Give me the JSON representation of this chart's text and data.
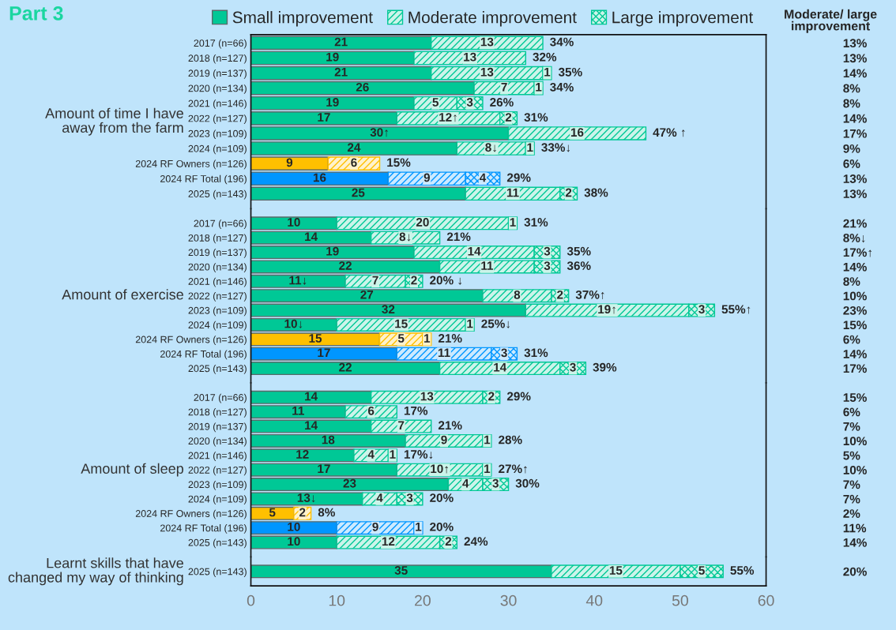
{
  "chart_data": [
    {
      "type": "bar",
      "orientation": "horizontal",
      "stacked": true,
      "title": "Part 3",
      "ylabel": "Amount of time I have\naway from the farm",
      "legend": "top",
      "tick_labels": "y",
      "xlim": [
        0,
        60
      ],
      "xticks": [
        0,
        10,
        20,
        30,
        40,
        50,
        60
      ],
      "categories": [
        "2017 (n=66)",
        "2018 (n=127)",
        "2019 (n=137)",
        "2020 (n=134)",
        "2021 (n=146)",
        "2022 (n=127)",
        "2023 (n=109)",
        "2024 (n=109)",
        "2024 RF Owners (n=126)",
        "2024 RF Total (196)",
        "2025 (n=143)"
      ],
      "y2_categories": [
        "13%",
        "13%",
        "14%",
        "8%",
        "8%",
        "14%",
        "17%",
        "9%",
        "6%",
        "13%",
        "13%"
      ],
      "series": [
        {
          "name": "Small improvement",
          "colors": [
            "#00c896",
            "#00c896",
            "#00c896",
            "#00c896",
            "#00c896",
            "#00c896",
            "#00c896",
            "#00c896",
            "#ffc000",
            "#0096ff",
            "#00c896"
          ],
          "values": [
            21,
            19,
            21,
            26,
            19,
            17,
            30,
            24,
            9,
            16,
            25
          ],
          "value_labels": [
            "21",
            "19",
            "21",
            "26",
            "19",
            "17",
            "30↑",
            "24",
            "9",
            "16",
            "25"
          ]
        },
        {
          "name": "Moderate improvement",
          "colors": [
            "#00c896",
            "#00c896",
            "#00c896",
            "#00c896",
            "#00c896",
            "#00c896",
            "#00c896",
            "#00c896",
            "#ffc000",
            "#0096ff",
            "#00c896"
          ],
          "values": [
            13,
            13,
            13,
            7,
            5,
            12,
            16,
            8,
            6,
            9,
            11
          ],
          "value_labels": [
            "13",
            "13",
            "13",
            "7",
            "5",
            "12↑",
            "16",
            "8↓",
            "6",
            "9",
            "11"
          ]
        },
        {
          "name": "Large improvement",
          "colors": [
            "#00c896",
            "#00c896",
            "#00c896",
            "#00c896",
            "#00c896",
            "#00c896",
            "#00c896",
            "#00c896",
            "#ffc000",
            "#0096ff",
            "#00c896"
          ],
          "values": [
            null,
            null,
            1,
            1,
            3,
            2,
            null,
            1,
            null,
            4,
            2
          ],
          "value_labels": [
            null,
            null,
            "1",
            "1",
            "3",
            "2",
            null,
            "1",
            null,
            "4",
            "2"
          ]
        }
      ],
      "totals": [
        "34%",
        "32%",
        "35%",
        "34%",
        "26%",
        "31%",
        "47% ↑",
        "33%↓",
        "15%",
        "29%",
        "38%"
      ],
      "annotations": [
        "Moderate/ large\nimprovement"
      ]
    },
    {
      "type": "bar",
      "orientation": "horizontal",
      "stacked": true,
      "ylabel": "Amount of exercise",
      "tick_labels": "y",
      "xlim": [
        0,
        60
      ],
      "xticks": [
        0,
        10,
        20,
        30,
        40,
        50,
        60
      ],
      "categories": [
        "2017 (n=66)",
        "2018 (n=127)",
        "2019 (n=137)",
        "2020 (n=134)",
        "2021 (n=146)",
        "2022 (n=127)",
        "2023 (n=109)",
        "2024 (n=109)",
        "2024 RF Owners (n=126)",
        "2024 RF Total (196)",
        "2025 (n=143)"
      ],
      "y2_categories": [
        "21%",
        "8%↓",
        "17%↑",
        "14%",
        "8%",
        "10%",
        "23%",
        "15%",
        "6%",
        "14%",
        "17%"
      ],
      "series": [
        {
          "colors": [
            "#00c896",
            "#00c896",
            "#00c896",
            "#00c896",
            "#00c896",
            "#00c896",
            "#00c896",
            "#00c896",
            "#ffc000",
            "#0096ff",
            "#00c896"
          ],
          "values": [
            10,
            14,
            19,
            22,
            11,
            27,
            32,
            10,
            15,
            17,
            22
          ],
          "value_labels": [
            "10",
            "14",
            "19",
            "22",
            "11↓",
            "27",
            "32",
            "10↓",
            "15",
            "17",
            "22"
          ]
        },
        {
          "colors": [
            "#00c896",
            "#00c896",
            "#00c896",
            "#00c896",
            "#00c896",
            "#00c896",
            "#00c896",
            "#00c896",
            "#ffc000",
            "#0096ff",
            "#00c896"
          ],
          "values": [
            20,
            8,
            14,
            11,
            7,
            8,
            19,
            15,
            5,
            11,
            14
          ],
          "value_labels": [
            "20",
            "8↓",
            "14",
            "11",
            "7",
            "8",
            "19↑",
            "15",
            "5",
            "11",
            "14"
          ]
        },
        {
          "colors": [
            "#00c896",
            "#00c896",
            "#00c896",
            "#00c896",
            "#00c896",
            "#00c896",
            "#00c896",
            "#00c896",
            "#ffc000",
            "#0096ff",
            "#00c896"
          ],
          "values": [
            1,
            null,
            3,
            3,
            2,
            2,
            3,
            1,
            1,
            3,
            3
          ],
          "value_labels": [
            "1",
            null,
            "3",
            "3",
            "2",
            "2",
            "3",
            "1",
            "1",
            "3",
            "3"
          ]
        }
      ],
      "totals": [
        "31%",
        "21%",
        "35%",
        "36%",
        "20% ↓",
        "37%↑",
        "55%↑",
        "25%↓",
        "21%",
        "31%",
        "39%"
      ]
    },
    {
      "type": "bar",
      "orientation": "horizontal",
      "stacked": true,
      "ylabel": "Amount of sleep",
      "tick_labels": "y",
      "xlim": [
        0,
        60
      ],
      "xticks": [
        0,
        10,
        20,
        30,
        40,
        50,
        60
      ],
      "categories": [
        "2017 (n=66)",
        "2018 (n=127)",
        "2019 (n=137)",
        "2020 (n=134)",
        "2021 (n=146)",
        "2022 (n=127)",
        "2023 (n=109)",
        "2024 (n=109)",
        "2024 RF Owners (n=126)",
        "2024 RF Total (196)",
        "2025 (n=143)"
      ],
      "y2_categories": [
        "15%",
        "6%",
        "7%",
        "10%",
        "5%",
        "10%",
        "7%",
        "7%",
        "2%",
        "11%",
        "14%"
      ],
      "series": [
        {
          "colors": [
            "#00c896",
            "#00c896",
            "#00c896",
            "#00c896",
            "#00c896",
            "#00c896",
            "#00c896",
            "#00c896",
            "#ffc000",
            "#0096ff",
            "#00c896"
          ],
          "values": [
            14,
            11,
            14,
            18,
            12,
            17,
            23,
            13,
            5,
            10,
            10
          ],
          "value_labels": [
            "14",
            "11",
            "14",
            "18",
            "12",
            "17",
            "23",
            "13↓",
            "5",
            "10",
            "10"
          ]
        },
        {
          "colors": [
            "#00c896",
            "#00c896",
            "#00c896",
            "#00c896",
            "#00c896",
            "#00c896",
            "#00c896",
            "#00c896",
            "#ffc000",
            "#0096ff",
            "#00c896"
          ],
          "values": [
            13,
            6,
            7,
            9,
            4,
            10,
            4,
            4,
            2,
            9,
            12
          ],
          "value_labels": [
            "13",
            "6",
            "7",
            "9",
            "4",
            "10↑",
            "4",
            "4",
            "2",
            "9",
            "12"
          ]
        },
        {
          "colors": [
            "#00c896",
            "#00c896",
            "#00c896",
            "#00c896",
            "#00c896",
            "#00c896",
            "#00c896",
            "#00c896",
            "#ffc000",
            "#0096ff",
            "#00c896"
          ],
          "values": [
            2,
            null,
            null,
            1,
            1,
            1,
            3,
            3,
            null,
            1,
            2
          ],
          "value_labels": [
            "2",
            null,
            null,
            "1",
            "1",
            "1",
            "3",
            "3",
            null,
            "1",
            "2"
          ]
        }
      ],
      "totals": [
        "29%",
        "17%",
        "21%",
        "28%",
        "17%↓",
        "27%↑",
        "30%",
        "20%",
        "8%",
        "20%",
        "24%"
      ]
    },
    {
      "type": "bar",
      "orientation": "horizontal",
      "stacked": true,
      "ylabel": "Learnt skills that have\nchanged my way of thinking",
      "xlim": [
        0,
        60
      ],
      "xticks": [
        0,
        10,
        20,
        30,
        40,
        50,
        60
      ],
      "categories": [
        "2025 (n=143)"
      ],
      "y2_categories": [
        "20%"
      ],
      "series": [
        {
          "colors": [
            "#00c896"
          ],
          "values": [
            35
          ],
          "value_labels": [
            "35"
          ]
        },
        {
          "colors": [
            "#00c896"
          ],
          "values": [
            15
          ],
          "value_labels": [
            "15"
          ]
        },
        {
          "colors": [
            "#00c896"
          ],
          "values": [
            5
          ],
          "value_labels": [
            "5"
          ]
        }
      ],
      "totals": [
        "55%"
      ]
    }
  ]
}
